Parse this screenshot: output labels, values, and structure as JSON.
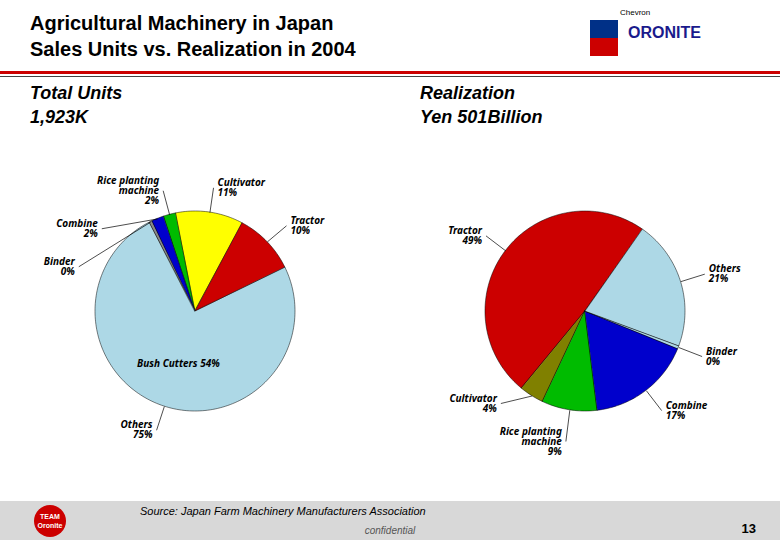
{
  "chart_data": [
    {
      "type": "pie",
      "title": "Agricultural Machinery in Japan",
      "subtitle": "Sales Units vs. Realization in 2004",
      "categories": [
        "Cultivator",
        "Rice planting\nmachine",
        "Combine",
        "Binder",
        "Others",
        "Tractor"
      ],
      "values": [
        11,
        2,
        2,
        0.5,
        75,
        10
      ],
      "value_labels": [
        "11%",
        "2%",
        "2%",
        "0%",
        "75%",
        "10%"
      ],
      "colors": [
        "#ffff00",
        "#00bb00",
        "#0000cc",
        "#888888",
        "#add8e6",
        "#cc0000"
      ],
      "caption": "Source: Japan Farm Machinery Manufacturers Association",
      "annotations": [
        "Total Units\n1,923K",
        "Bush Cutters 54%",
        "confidential",
        "13",
        "Chevron",
        "ORONITE",
        "TEAM",
        "Oronite"
      ]
    },
    {
      "type": "pie",
      "categories": [
        "Tractor",
        "Cultivator",
        "Rice planting\nmachine",
        "Combine",
        "Binder",
        "Others"
      ],
      "values": [
        49,
        4,
        9,
        17,
        0.5,
        21
      ],
      "value_labels": [
        "49%",
        "4%",
        "9%",
        "17%",
        "0%",
        "21%"
      ],
      "colors": [
        "#cc0000",
        "#808000",
        "#00bb00",
        "#0000cc",
        "#add8e6",
        "#add8e6"
      ],
      "annotations": [
        "Realization\nYen 501Billion"
      ]
    }
  ]
}
